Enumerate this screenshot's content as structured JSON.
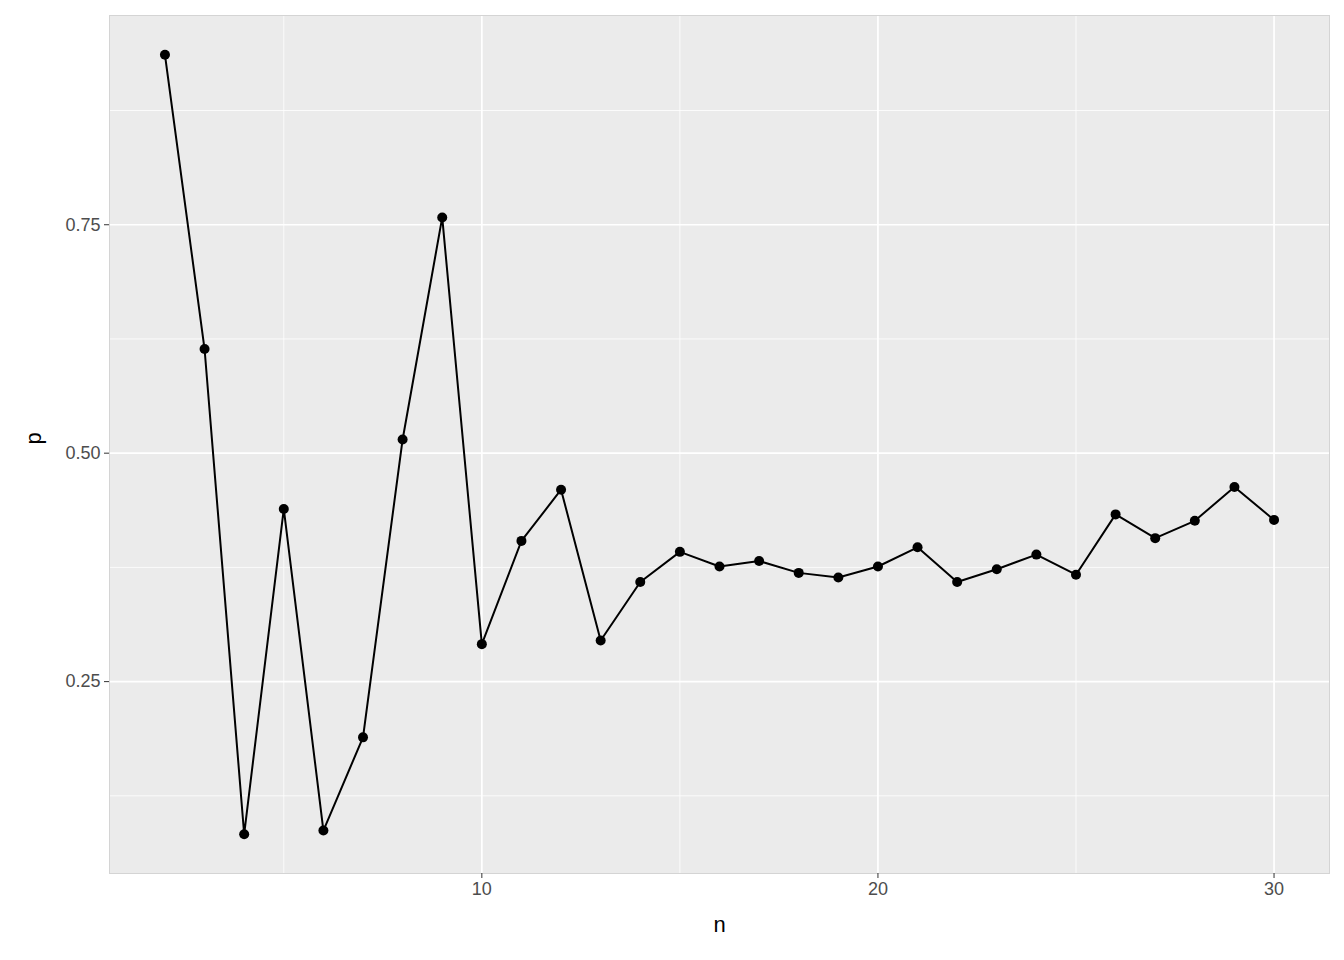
{
  "chart_data": {
    "type": "line",
    "x_label": "n",
    "y_label": "p",
    "x": [
      2,
      3,
      4,
      5,
      6,
      7,
      8,
      9,
      10,
      11,
      12,
      13,
      14,
      15,
      16,
      17,
      18,
      19,
      20,
      21,
      22,
      23,
      24,
      25,
      26,
      27,
      28,
      29,
      30
    ],
    "values": [
      0.936,
      0.614,
      0.083,
      0.439,
      0.087,
      0.189,
      0.515,
      0.758,
      0.291,
      0.404,
      0.46,
      0.295,
      0.359,
      0.392,
      0.376,
      0.382,
      0.369,
      0.364,
      0.376,
      0.397,
      0.359,
      0.373,
      0.389,
      0.367,
      0.433,
      0.407,
      0.426,
      0.463,
      0.427
    ],
    "color": "#000000",
    "marker": "circle",
    "xlim": [
      0.6,
      31.4
    ],
    "ylim": [
      0.04,
      0.979
    ],
    "xticks": [
      10,
      20,
      30
    ],
    "yticks": [
      0.25,
      {
        "value": 0.5,
        "label": "0.50"
      },
      0.75
    ],
    "grid": true
  }
}
